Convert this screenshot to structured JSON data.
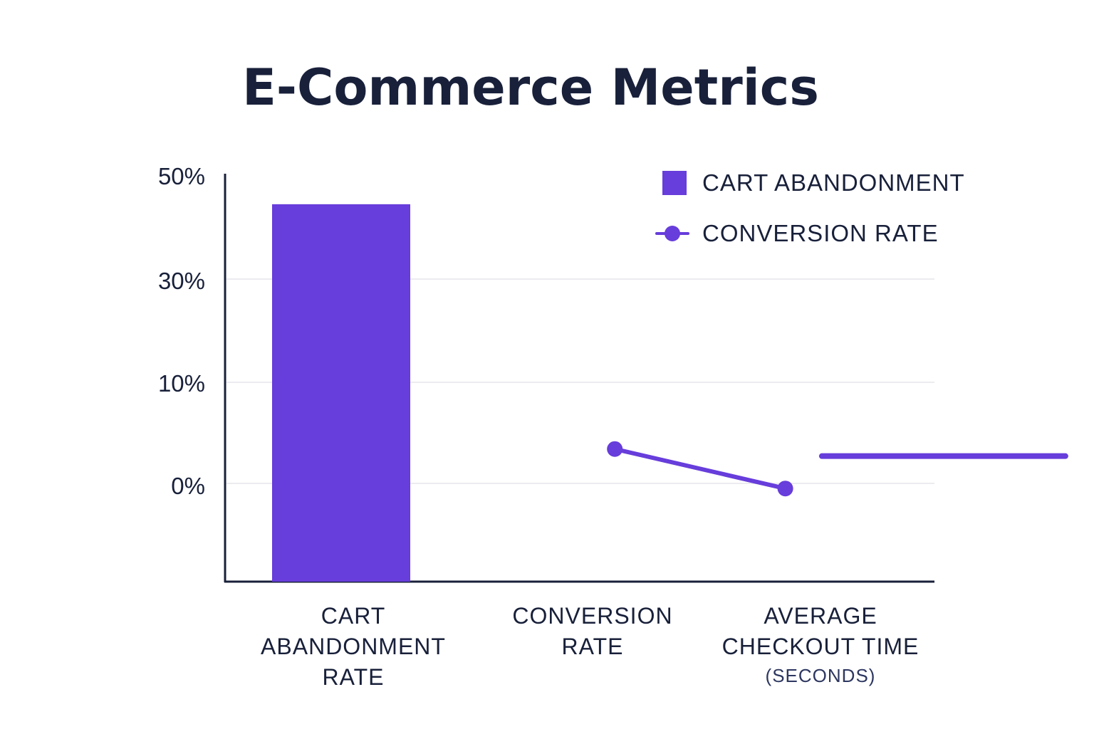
{
  "chart_data": {
    "type": "bar",
    "title": "E-Commerce Metrics",
    "xlabel": "",
    "ylabel": "",
    "y_ticks": [
      "50%",
      "30%",
      "10%",
      "0%"
    ],
    "categories": [
      {
        "lines": [
          "CART",
          "ABANDONMENT",
          "RATE"
        ],
        "sub": ""
      },
      {
        "lines": [
          "CONVERSION",
          "RATE"
        ],
        "sub": ""
      },
      {
        "lines": [
          "AVERAGE",
          "CHECKOUT TIME"
        ],
        "sub": "(SECONDS)"
      }
    ],
    "series": [
      {
        "name": "CART ABANDONMENT",
        "kind": "bar",
        "category": 0,
        "value": 44.5
      },
      {
        "name": "CONVERSION RATE",
        "kind": "line",
        "points": [
          {
            "x": 1.6,
            "y": 3.4
          },
          {
            "x": 2.3,
            "y": -0.5
          }
        ]
      },
      {
        "name": "AVERAGE CHECKOUT TIME",
        "kind": "line",
        "points": [
          {
            "x": 2.45,
            "y": 2.7
          },
          {
            "x": 3.45,
            "y": 2.7
          }
        ]
      }
    ],
    "legend": [
      {
        "label": "CART ABANDONMENT",
        "marker": "square"
      },
      {
        "label": "CONVERSION RATE",
        "marker": "line-dot"
      }
    ],
    "legend_position": "top-right",
    "colors": {
      "primary": "#673ddb",
      "axis": "#18203a",
      "grid": "#ececf0"
    }
  }
}
